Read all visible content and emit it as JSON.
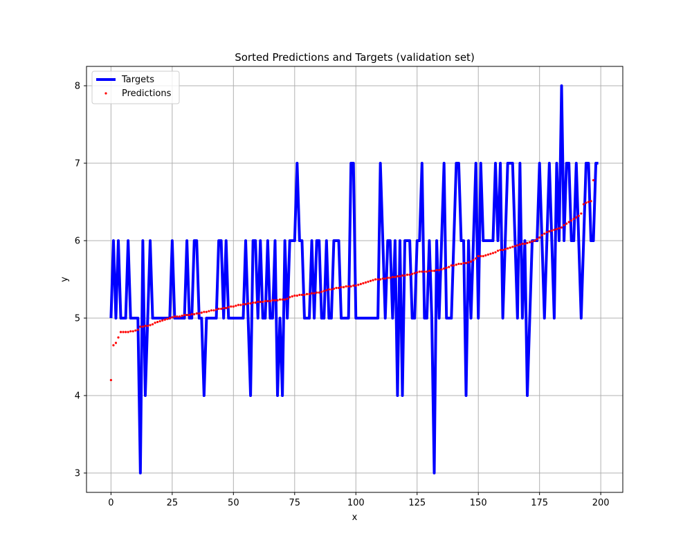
{
  "chart_data": {
    "type": "line",
    "title": "Sorted Predictions and Targets (validation set)",
    "xlabel": "x",
    "ylabel": "y",
    "xlim": [
      -10,
      209
    ],
    "ylim": [
      2.75,
      8.25
    ],
    "xticks": [
      0,
      25,
      50,
      75,
      100,
      125,
      150,
      175,
      200
    ],
    "yticks": [
      3,
      4,
      5,
      6,
      7,
      8
    ],
    "xtick_labels": [
      "0",
      "25",
      "50",
      "75",
      "100",
      "125",
      "150",
      "175",
      "200"
    ],
    "ytick_labels": [
      "3",
      "4",
      "5",
      "6",
      "7",
      "8"
    ],
    "grid": true,
    "legend_position": "top-left",
    "series": [
      {
        "name": "Targets",
        "kind": "line",
        "color": "#0000ff",
        "x_start": 0,
        "x_step": 1,
        "values": [
          5,
          6,
          5,
          6,
          5,
          5,
          5,
          6,
          5,
          5,
          5,
          5,
          3,
          6,
          4,
          5,
          6,
          5,
          5,
          5,
          5,
          5,
          5,
          5,
          5,
          6,
          5,
          5,
          5,
          5,
          5,
          6,
          5,
          5,
          6,
          6,
          5,
          5,
          4,
          5,
          5,
          5,
          5,
          5,
          6,
          6,
          5,
          6,
          5,
          5,
          5,
          5,
          5,
          5,
          5,
          6,
          5,
          4,
          6,
          6,
          5,
          6,
          5,
          5,
          6,
          5,
          5,
          6,
          4,
          5,
          4,
          6,
          5,
          6,
          6,
          6,
          7,
          6,
          6,
          5,
          5,
          5,
          6,
          5,
          6,
          6,
          5,
          5,
          6,
          5,
          5,
          6,
          6,
          6,
          5,
          5,
          5,
          5,
          7,
          7,
          5,
          5,
          5,
          5,
          5,
          5,
          5,
          5,
          5,
          5,
          7,
          6,
          5,
          6,
          6,
          5,
          6,
          4,
          6,
          4,
          6,
          6,
          6,
          5,
          5,
          6,
          6,
          7,
          5,
          5,
          6,
          5,
          3,
          6,
          5,
          6,
          7,
          5,
          5,
          5,
          6,
          7,
          7,
          6,
          6,
          4,
          6,
          5,
          6,
          7,
          5,
          7,
          6,
          6,
          6,
          6,
          6,
          7,
          6,
          7,
          5,
          6,
          7,
          7,
          7,
          6,
          5,
          7,
          5,
          6,
          4,
          5,
          6,
          6,
          6,
          7,
          6,
          5,
          6,
          7,
          6,
          5,
          7,
          6,
          8,
          6,
          7,
          7,
          6,
          6,
          7,
          6,
          5,
          6,
          7,
          7,
          6,
          6,
          7,
          7
        ]
      },
      {
        "name": "Predictions",
        "kind": "scatter",
        "color": "#ff0000",
        "x_start": 0,
        "x_step": 1,
        "values": [
          4.2,
          4.65,
          4.68,
          4.75,
          4.82,
          4.82,
          4.82,
          4.82,
          4.83,
          4.83,
          4.84,
          4.85,
          4.89,
          4.89,
          4.9,
          4.9,
          4.91,
          4.92,
          4.94,
          4.95,
          4.96,
          4.97,
          4.98,
          4.99,
          5.0,
          5.01,
          5.02,
          5.02,
          5.02,
          5.03,
          5.04,
          5.04,
          5.04,
          5.05,
          5.05,
          5.06,
          5.06,
          5.07,
          5.08,
          5.08,
          5.09,
          5.1,
          5.1,
          5.11,
          5.12,
          5.12,
          5.13,
          5.13,
          5.14,
          5.15,
          5.15,
          5.16,
          5.17,
          5.17,
          5.18,
          5.18,
          5.19,
          5.19,
          5.2,
          5.2,
          5.21,
          5.21,
          5.21,
          5.22,
          5.22,
          5.22,
          5.23,
          5.23,
          5.23,
          5.24,
          5.24,
          5.24,
          5.25,
          5.27,
          5.28,
          5.29,
          5.29,
          5.3,
          5.3,
          5.3,
          5.31,
          5.31,
          5.32,
          5.32,
          5.33,
          5.33,
          5.34,
          5.35,
          5.36,
          5.37,
          5.37,
          5.38,
          5.39,
          5.39,
          5.4,
          5.4,
          5.41,
          5.41,
          5.41,
          5.42,
          5.42,
          5.43,
          5.44,
          5.45,
          5.46,
          5.47,
          5.48,
          5.49,
          5.5,
          5.5,
          5.5,
          5.51,
          5.51,
          5.52,
          5.52,
          5.53,
          5.53,
          5.54,
          5.54,
          5.55,
          5.55,
          5.56,
          5.56,
          5.57,
          5.58,
          5.59,
          5.6,
          5.6,
          5.6,
          5.6,
          5.61,
          5.61,
          5.61,
          5.62,
          5.62,
          5.63,
          5.64,
          5.65,
          5.66,
          5.68,
          5.68,
          5.69,
          5.7,
          5.7,
          5.71,
          5.71,
          5.72,
          5.73,
          5.75,
          5.77,
          5.8,
          5.8,
          5.8,
          5.81,
          5.82,
          5.83,
          5.84,
          5.85,
          5.87,
          5.88,
          5.88,
          5.89,
          5.9,
          5.91,
          5.92,
          5.93,
          5.94,
          5.95,
          5.96,
          5.96,
          5.97,
          5.98,
          5.99,
          6.0,
          6.02,
          6.04,
          6.07,
          6.09,
          6.11,
          6.12,
          6.13,
          6.14,
          6.15,
          6.16,
          6.17,
          6.2,
          6.22,
          6.24,
          6.26,
          6.28,
          6.3,
          6.32,
          6.35,
          6.47,
          6.49,
          6.5,
          6.51,
          6.78
        ]
      }
    ]
  }
}
